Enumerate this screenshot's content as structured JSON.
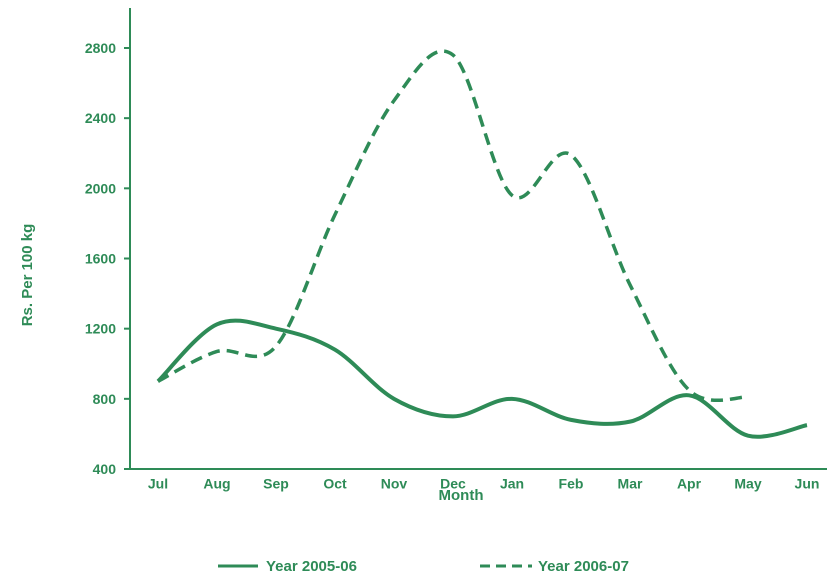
{
  "chart_data": {
    "type": "line",
    "title": "",
    "xlabel": "Month",
    "ylabel": "Rs. Per 100 kg",
    "categories": [
      "Jul",
      "Aug",
      "Sep",
      "Oct",
      "Nov",
      "Dec",
      "Jan",
      "Feb",
      "Mar",
      "Apr",
      "May",
      "Jun"
    ],
    "y_ticks": [
      "400",
      "800",
      "1200",
      "1600",
      "2000",
      "2400",
      "2800"
    ],
    "ylim": [
      400,
      2800
    ],
    "grid": false,
    "legend_position": "bottom",
    "series": [
      {
        "name": "Year 2005-06",
        "style": "solid",
        "values": [
          900,
          1225,
          1200,
          1080,
          800,
          700,
          800,
          680,
          670,
          820,
          590,
          650
        ]
      },
      {
        "name": "Year 2006-07",
        "style": "dashed",
        "values": [
          900,
          1070,
          1100,
          1850,
          2500,
          2760,
          1960,
          2190,
          1450,
          850,
          810,
          null
        ]
      }
    ],
    "color": "#2e8b57",
    "axis_color": "#2e8b57"
  }
}
